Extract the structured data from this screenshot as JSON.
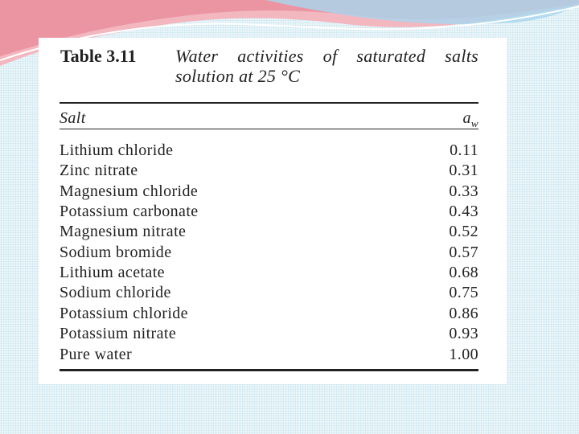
{
  "table": {
    "label": "Table 3.11",
    "caption": [
      "Water activities of saturated salts",
      "solution at 25 °C"
    ],
    "header": {
      "salt": "Salt",
      "aw": {
        "base": "a",
        "sub": "w"
      }
    },
    "rows": [
      [
        "Lithium chloride",
        "0.11"
      ],
      [
        "Zinc nitrate",
        "0.31"
      ],
      [
        "Magnesium chloride",
        "0.33"
      ],
      [
        "Potassium carbonate",
        "0.43"
      ],
      [
        "Magnesium nitrate",
        "0.52"
      ],
      [
        "Sodium bromide",
        "0.57"
      ],
      [
        "Lithium acetate",
        "0.68"
      ],
      [
        "Sodium chloride",
        "0.75"
      ],
      [
        "Potassium chloride",
        "0.86"
      ],
      [
        "Potassium nitrate",
        "0.93"
      ],
      [
        "Pure water",
        "1.00"
      ]
    ]
  }
}
